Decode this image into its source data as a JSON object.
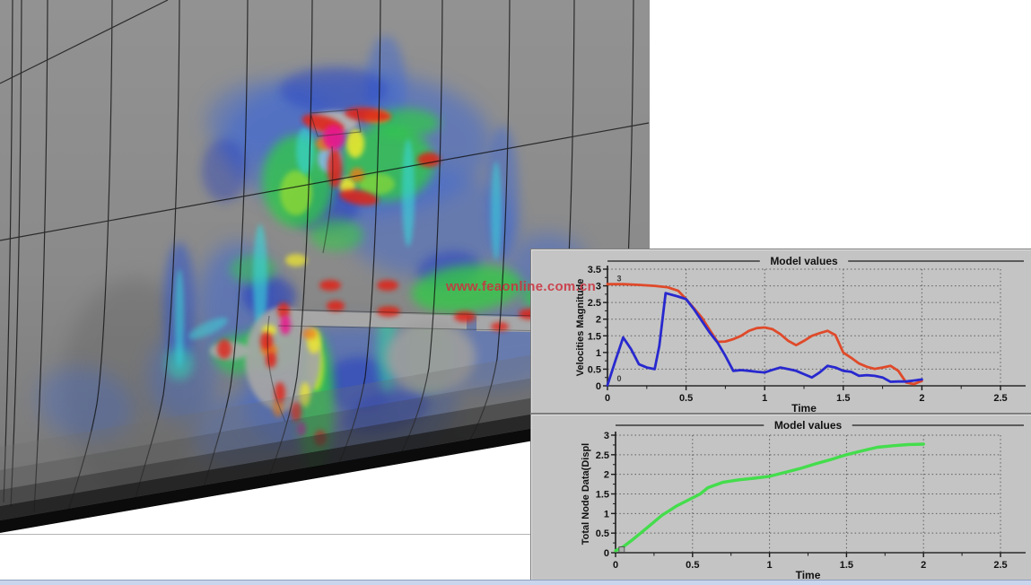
{
  "watermark": {
    "text": "www.feaonline.com.cn",
    "color": "#cb3340"
  },
  "viewport": {
    "name": "fea-contour-view",
    "hull_color": "#8a8a8a",
    "mesh_color": "#0a0a0a",
    "fringe_palette": [
      "#1733c4",
      "#3a66d8",
      "#38d8dc",
      "#2fcc44",
      "#9ade2e",
      "#f2ea2c",
      "#ef7a18",
      "#e02414",
      "#e8168c"
    ]
  },
  "chart_data": [
    {
      "name": "velocities-chart",
      "type": "line",
      "title": "Model values",
      "xlabel": "Time",
      "ylabel": "Velocities Magnitude",
      "xlim": [
        0,
        2.5
      ],
      "ylim": [
        0,
        3.5
      ],
      "xticks": [
        0,
        0.5,
        1,
        1.5,
        2,
        2.5
      ],
      "yticks": [
        0,
        0.5,
        1,
        1.5,
        2,
        2.5,
        3,
        3.5
      ],
      "x_minor_step": 0.25,
      "y_minor_step": 0.25,
      "grid": "dotted",
      "panel_color": "#c4c4c4",
      "series": [
        {
          "name": "curve-3",
          "label": "3",
          "label_at": [
            0.06,
            3.14
          ],
          "color": "#df4a2a",
          "width": 2.8,
          "x": [
            0,
            0.1,
            0.2,
            0.3,
            0.38,
            0.45,
            0.5,
            0.55,
            0.6,
            0.65,
            0.7,
            0.75,
            0.8,
            0.85,
            0.9,
            0.95,
            1.0,
            1.05,
            1.1,
            1.15,
            1.2,
            1.25,
            1.3,
            1.35,
            1.4,
            1.45,
            1.5,
            1.55,
            1.6,
            1.65,
            1.7,
            1.75,
            1.8,
            1.85,
            1.9,
            1.95,
            2.0
          ],
          "y": [
            3.05,
            3.05,
            3.03,
            3.0,
            2.96,
            2.85,
            2.6,
            2.33,
            2.05,
            1.68,
            1.32,
            1.33,
            1.4,
            1.5,
            1.65,
            1.73,
            1.75,
            1.7,
            1.55,
            1.35,
            1.22,
            1.35,
            1.5,
            1.58,
            1.65,
            1.52,
            1.0,
            0.84,
            0.67,
            0.57,
            0.51,
            0.55,
            0.6,
            0.45,
            0.1,
            0.05,
            0.15
          ]
        },
        {
          "name": "curve-0",
          "label": "0",
          "label_at": [
            0.06,
            0.14
          ],
          "color": "#2828cf",
          "width": 2.8,
          "x": [
            0,
            0.05,
            0.1,
            0.15,
            0.2,
            0.25,
            0.3,
            0.33,
            0.37,
            0.45,
            0.5,
            0.55,
            0.6,
            0.65,
            0.7,
            0.75,
            0.8,
            0.85,
            0.9,
            0.95,
            1.0,
            1.05,
            1.1,
            1.15,
            1.2,
            1.25,
            1.3,
            1.35,
            1.4,
            1.45,
            1.5,
            1.55,
            1.6,
            1.65,
            1.7,
            1.75,
            1.8,
            1.85,
            1.9,
            1.95,
            2.0
          ],
          "y": [
            0.02,
            0.75,
            1.45,
            1.1,
            0.65,
            0.55,
            0.5,
            1.2,
            2.78,
            2.68,
            2.6,
            2.3,
            1.95,
            1.6,
            1.3,
            0.9,
            0.45,
            0.47,
            0.45,
            0.42,
            0.4,
            0.48,
            0.55,
            0.5,
            0.45,
            0.35,
            0.25,
            0.4,
            0.6,
            0.55,
            0.45,
            0.42,
            0.3,
            0.32,
            0.3,
            0.25,
            0.12,
            0.13,
            0.13,
            0.16,
            0.19
          ]
        }
      ]
    },
    {
      "name": "displacement-chart",
      "type": "line",
      "title": "Model values",
      "xlabel": "Time",
      "ylabel": "Total Node Data(Displ",
      "xlim": [
        0,
        2.5
      ],
      "ylim": [
        0,
        3
      ],
      "xticks": [
        0,
        0.5,
        1,
        1.5,
        2,
        2.5
      ],
      "yticks": [
        0,
        0.5,
        1,
        1.5,
        2,
        2.5,
        3
      ],
      "x_minor_step": 0.25,
      "y_minor_step": 0.25,
      "grid": "dotted",
      "panel_color": "#c4c4c4",
      "series": [
        {
          "name": "curve-displ",
          "label": "",
          "label_at": [
            0.05,
            0.1
          ],
          "color": "#44dd4c",
          "width": 3.4,
          "start_marker": true,
          "x": [
            0,
            0.05,
            0.1,
            0.2,
            0.3,
            0.4,
            0.5,
            0.55,
            0.6,
            0.7,
            0.8,
            0.9,
            1.0,
            1.1,
            1.2,
            1.3,
            1.4,
            1.5,
            1.6,
            1.7,
            1.8,
            1.9,
            2.0
          ],
          "y": [
            0.05,
            0.15,
            0.3,
            0.62,
            0.95,
            1.2,
            1.4,
            1.5,
            1.66,
            1.8,
            1.86,
            1.9,
            1.95,
            2.05,
            2.15,
            2.27,
            2.38,
            2.5,
            2.6,
            2.69,
            2.73,
            2.76,
            2.77
          ]
        }
      ]
    }
  ]
}
